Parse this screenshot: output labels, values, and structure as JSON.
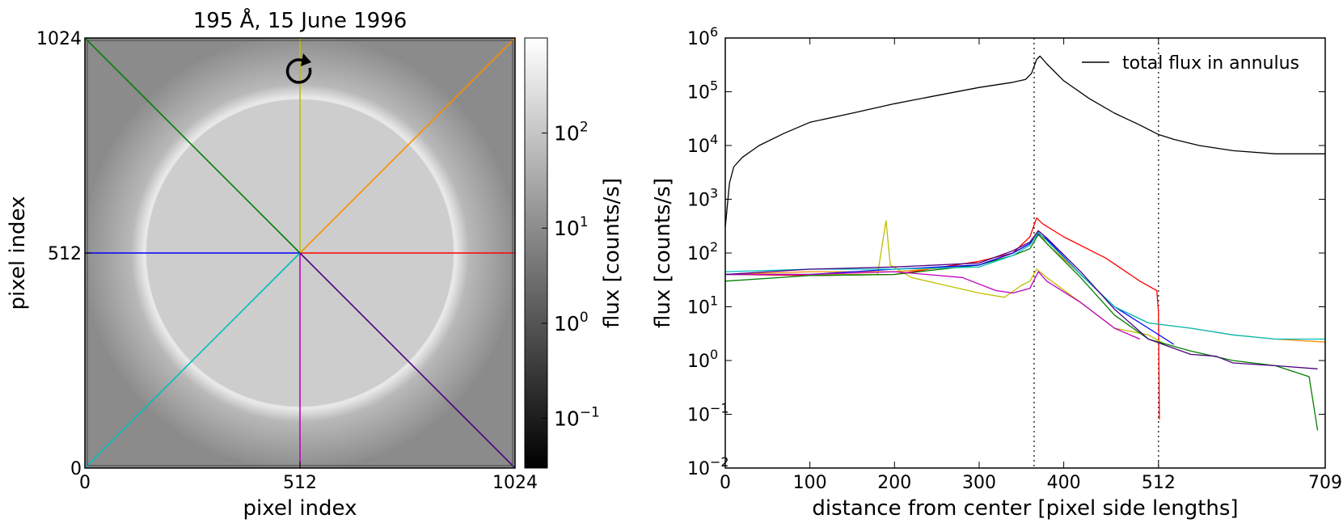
{
  "chart_data": [
    {
      "type": "image",
      "title": "195 Å, 15 June 1996",
      "xlabel": "pixel index",
      "ylabel": "pixel index",
      "xlim": [
        0,
        1024
      ],
      "ylim": [
        0,
        1024
      ],
      "xticks": [
        {
          "value": 0,
          "label": "0"
        },
        {
          "value": 512,
          "label": "512"
        },
        {
          "value": 1024,
          "label": "1024"
        }
      ],
      "yticks": [
        {
          "value": 0,
          "label": "0"
        },
        {
          "value": 512,
          "label": "512"
        },
        {
          "value": 1024,
          "label": "1024"
        }
      ],
      "center": [
        512,
        512
      ],
      "solar_disk_radius": 365,
      "rotation_marker": "rotation-arrow",
      "rays": [
        {
          "name": "ray-red",
          "color": "#ff0000",
          "end": [
            1024,
            512
          ]
        },
        {
          "name": "ray-orange",
          "color": "#ff8c00",
          "end": [
            1024,
            1024
          ]
        },
        {
          "name": "ray-yellow",
          "color": "#bfbf00",
          "end": [
            512,
            1024
          ]
        },
        {
          "name": "ray-green",
          "color": "#008000",
          "end": [
            0,
            1024
          ]
        },
        {
          "name": "ray-blue",
          "color": "#0000ff",
          "end": [
            0,
            512
          ]
        },
        {
          "name": "ray-cyan",
          "color": "#00bfbf",
          "end": [
            0,
            0
          ]
        },
        {
          "name": "ray-magenta",
          "color": "#bf00bf",
          "end": [
            512,
            0
          ]
        },
        {
          "name": "ray-indigo",
          "color": "#4b0082",
          "end": [
            1024,
            0
          ]
        }
      ],
      "colorbar": {
        "label": "flux [counts/s]",
        "scale": "log",
        "range": [
          0.03,
          1000
        ],
        "ticks": [
          {
            "exp": "-1",
            "value": 0.1
          },
          {
            "exp": "0",
            "value": 1
          },
          {
            "exp": "1",
            "value": 10
          },
          {
            "exp": "2",
            "value": 100
          }
        ]
      }
    },
    {
      "type": "line",
      "xlabel": "distance from center [pixel side lengths]",
      "ylabel": "flux [counts/s]",
      "xlim": [
        0,
        709
      ],
      "ylim": [
        0.01,
        1000000
      ],
      "yscale": "log",
      "xticks": [
        0,
        100,
        200,
        300,
        400,
        512,
        709
      ],
      "yticks": [
        {
          "exp": "-2",
          "value": 0.01
        },
        {
          "exp": "-1",
          "value": 0.1
        },
        {
          "exp": "0",
          "value": 1
        },
        {
          "exp": "1",
          "value": 10
        },
        {
          "exp": "2",
          "value": 100
        },
        {
          "exp": "3",
          "value": 1000
        },
        {
          "exp": "4",
          "value": 10000
        },
        {
          "exp": "5",
          "value": 100000
        },
        {
          "exp": "6",
          "value": 1000000
        }
      ],
      "vlines": [
        365,
        512
      ],
      "legend": {
        "location": "top-right",
        "entries": [
          "total flux in annulus"
        ]
      },
      "series": [
        {
          "name": "total flux in annulus",
          "color": "#000000",
          "points": [
            [
              0,
              300
            ],
            [
              5,
              2000
            ],
            [
              10,
              4000
            ],
            [
              20,
              6000
            ],
            [
              40,
              10000
            ],
            [
              70,
              17000
            ],
            [
              100,
              27000
            ],
            [
              150,
              40000
            ],
            [
              200,
              60000
            ],
            [
              250,
              85000
            ],
            [
              300,
              120000
            ],
            [
              340,
              150000
            ],
            [
              355,
              170000
            ],
            [
              362,
              220000
            ],
            [
              368,
              400000
            ],
            [
              372,
              460000
            ],
            [
              380,
              330000
            ],
            [
              400,
              160000
            ],
            [
              430,
              75000
            ],
            [
              460,
              40000
            ],
            [
              490,
              24000
            ],
            [
              512,
              16000
            ],
            [
              530,
              13000
            ],
            [
              560,
              10000
            ],
            [
              600,
              8000
            ],
            [
              650,
              7000
            ],
            [
              709,
              7000
            ]
          ]
        },
        {
          "name": "red",
          "color": "#ff0000",
          "points": [
            [
              0,
              40
            ],
            [
              100,
              38
            ],
            [
              200,
              40
            ],
            [
              300,
              70
            ],
            [
              340,
              100
            ],
            [
              360,
              200
            ],
            [
              368,
              450
            ],
            [
              375,
              350
            ],
            [
              400,
              200
            ],
            [
              450,
              80
            ],
            [
              490,
              30
            ],
            [
              510,
              20
            ],
            [
              512,
              8
            ],
            [
              513,
              0.08
            ]
          ]
        },
        {
          "name": "orange",
          "color": "#ff8c00",
          "points": [
            [
              0,
              40
            ],
            [
              100,
              45
            ],
            [
              200,
              45
            ],
            [
              300,
              60
            ],
            [
              340,
              100
            ],
            [
              360,
              150
            ],
            [
              370,
              250
            ],
            [
              380,
              150
            ],
            [
              420,
              40
            ],
            [
              460,
              10
            ],
            [
              500,
              5
            ],
            [
              550,
              4
            ],
            [
              600,
              3
            ],
            [
              650,
              2.5
            ],
            [
              709,
              2.2
            ]
          ]
        },
        {
          "name": "yellow",
          "color": "#bfbf00",
          "points": [
            [
              0,
              40
            ],
            [
              100,
              40
            ],
            [
              180,
              40
            ],
            [
              190,
              400
            ],
            [
              195,
              60
            ],
            [
              220,
              35
            ],
            [
              260,
              25
            ],
            [
              300,
              18
            ],
            [
              330,
              15
            ],
            [
              350,
              25
            ],
            [
              360,
              30
            ],
            [
              368,
              50
            ],
            [
              380,
              35
            ],
            [
              420,
              12
            ],
            [
              460,
              4
            ],
            [
              500,
              3
            ],
            [
              520,
              2
            ]
          ]
        },
        {
          "name": "green",
          "color": "#008000",
          "points": [
            [
              0,
              30
            ],
            [
              100,
              38
            ],
            [
              200,
              40
            ],
            [
              300,
              60
            ],
            [
              340,
              90
            ],
            [
              360,
              120
            ],
            [
              370,
              220
            ],
            [
              380,
              150
            ],
            [
              420,
              35
            ],
            [
              460,
              7
            ],
            [
              500,
              2.5
            ],
            [
              550,
              1.5
            ],
            [
              600,
              1.0
            ],
            [
              650,
              0.8
            ],
            [
              690,
              0.5
            ],
            [
              700,
              0.05
            ]
          ]
        },
        {
          "name": "blue",
          "color": "#0000ff",
          "points": [
            [
              0,
              40
            ],
            [
              100,
              40
            ],
            [
              200,
              50
            ],
            [
              300,
              60
            ],
            [
              340,
              100
            ],
            [
              360,
              150
            ],
            [
              370,
              230
            ],
            [
              380,
              180
            ],
            [
              420,
              40
            ],
            [
              460,
              10
            ],
            [
              500,
              4
            ],
            [
              530,
              2
            ]
          ]
        },
        {
          "name": "cyan",
          "color": "#00bfbf",
          "points": [
            [
              0,
              45
            ],
            [
              100,
              50
            ],
            [
              200,
              50
            ],
            [
              300,
              55
            ],
            [
              340,
              90
            ],
            [
              360,
              140
            ],
            [
              370,
              240
            ],
            [
              380,
              170
            ],
            [
              420,
              40
            ],
            [
              460,
              10
            ],
            [
              500,
              5
            ],
            [
              550,
              4
            ],
            [
              600,
              3
            ],
            [
              650,
              2.5
            ],
            [
              709,
              2.5
            ]
          ]
        },
        {
          "name": "magenta",
          "color": "#bf00bf",
          "points": [
            [
              0,
              40
            ],
            [
              100,
              40
            ],
            [
              200,
              45
            ],
            [
              280,
              35
            ],
            [
              320,
              20
            ],
            [
              340,
              18
            ],
            [
              360,
              22
            ],
            [
              370,
              45
            ],
            [
              380,
              30
            ],
            [
              420,
              12
            ],
            [
              460,
              4
            ],
            [
              490,
              2.5
            ]
          ]
        },
        {
          "name": "indigo",
          "color": "#4b0082",
          "points": [
            [
              0,
              40
            ],
            [
              100,
              50
            ],
            [
              200,
              55
            ],
            [
              300,
              65
            ],
            [
              340,
              110
            ],
            [
              360,
              160
            ],
            [
              370,
              260
            ],
            [
              380,
              190
            ],
            [
              420,
              45
            ],
            [
              460,
              9
            ],
            [
              500,
              2.5
            ],
            [
              550,
              1.3
            ],
            [
              580,
              1.2
            ],
            [
              600,
              0.9
            ],
            [
              650,
              0.8
            ],
            [
              700,
              0.7
            ]
          ]
        }
      ]
    }
  ]
}
